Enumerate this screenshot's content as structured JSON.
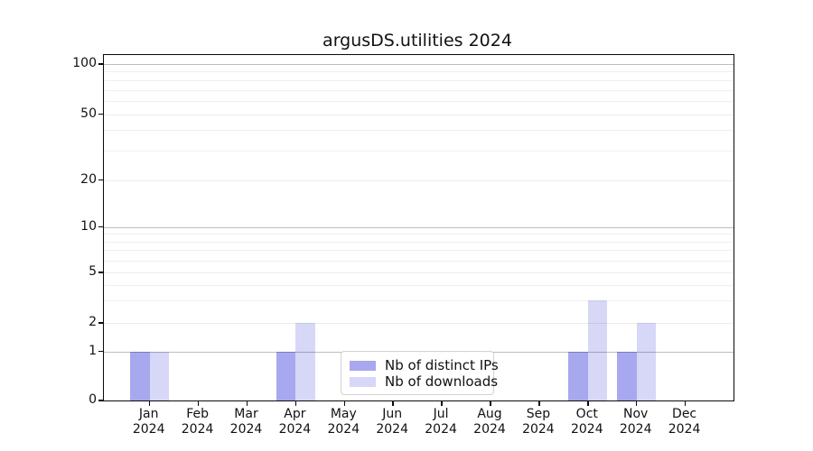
{
  "title": "argusDS.utilities 2024",
  "chart_data": {
    "type": "bar",
    "title": "argusDS.utilities 2024",
    "xlabel": "",
    "ylabel": "",
    "yscale": "symlog",
    "ylim": [
      0,
      100
    ],
    "grid": true,
    "legend_position": "lower center",
    "y_major_ticks": [
      0,
      1,
      2,
      5,
      10,
      20,
      50,
      100
    ],
    "y_decade_ticks": [
      1,
      10,
      100
    ],
    "y_minor_ticks": [
      3,
      4,
      6,
      7,
      8,
      9,
      30,
      40,
      60,
      70,
      80,
      90
    ],
    "categories": [
      "Jan",
      "Feb",
      "Mar",
      "Apr",
      "May",
      "Jun",
      "Jul",
      "Aug",
      "Sep",
      "Oct",
      "Nov",
      "Dec"
    ],
    "category_year": "2024",
    "series": [
      {
        "name": "Nb of distinct IPs",
        "color": "rgba(0,0,205,0.34)",
        "color_hex_on_white": "#aaaaee",
        "values": [
          1,
          0,
          0,
          1,
          0,
          0,
          0,
          0,
          0,
          1,
          1,
          0
        ]
      },
      {
        "name": "Nb of downloads",
        "color": "rgba(0,0,205,0.155)",
        "color_hex_on_white": "#d8d8f6",
        "values": [
          1,
          0,
          0,
          2,
          0,
          0,
          0,
          0,
          0,
          3,
          2,
          0
        ]
      }
    ]
  },
  "colors": {
    "major_grid": "#bdbdbd",
    "minor_grid": "#efefef",
    "axis": "#0a0a0a",
    "legend_border": "#d2d2d2"
  }
}
